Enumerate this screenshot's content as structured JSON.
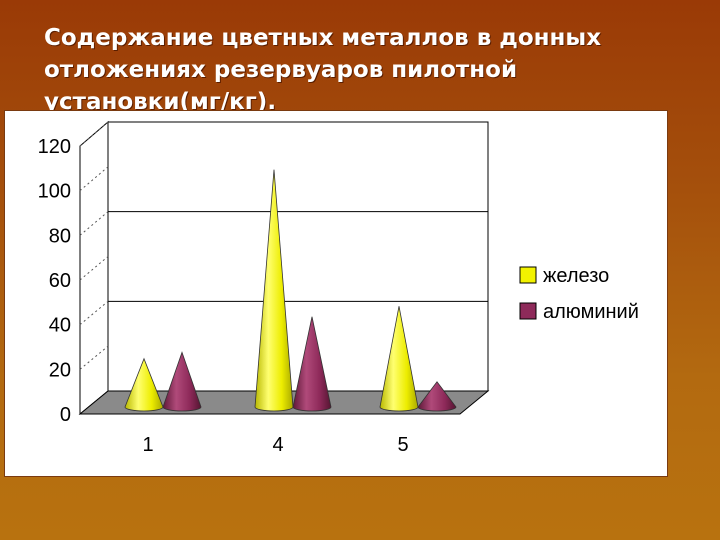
{
  "slide": {
    "title": "Содержание цветных  металлов в донных отложениях резервуаров пилотной установки(мг/кг)."
  },
  "chart_data": {
    "type": "bar",
    "bar_shape": "cone-3d",
    "title": "",
    "xlabel": "",
    "ylabel": "",
    "categories": [
      "1",
      "4",
      "5"
    ],
    "ylim": [
      0,
      120
    ],
    "yticks": [
      "0",
      "20",
      "40",
      "60",
      "80",
      "100",
      "120"
    ],
    "grid": true,
    "legend_position": "right",
    "series": [
      {
        "name": "железо",
        "color": "#f2f200",
        "values": [
          23,
          113,
          48
        ]
      },
      {
        "name": "алюминий",
        "color": "#8e2a5a",
        "values": [
          26,
          43,
          12
        ]
      }
    ]
  }
}
